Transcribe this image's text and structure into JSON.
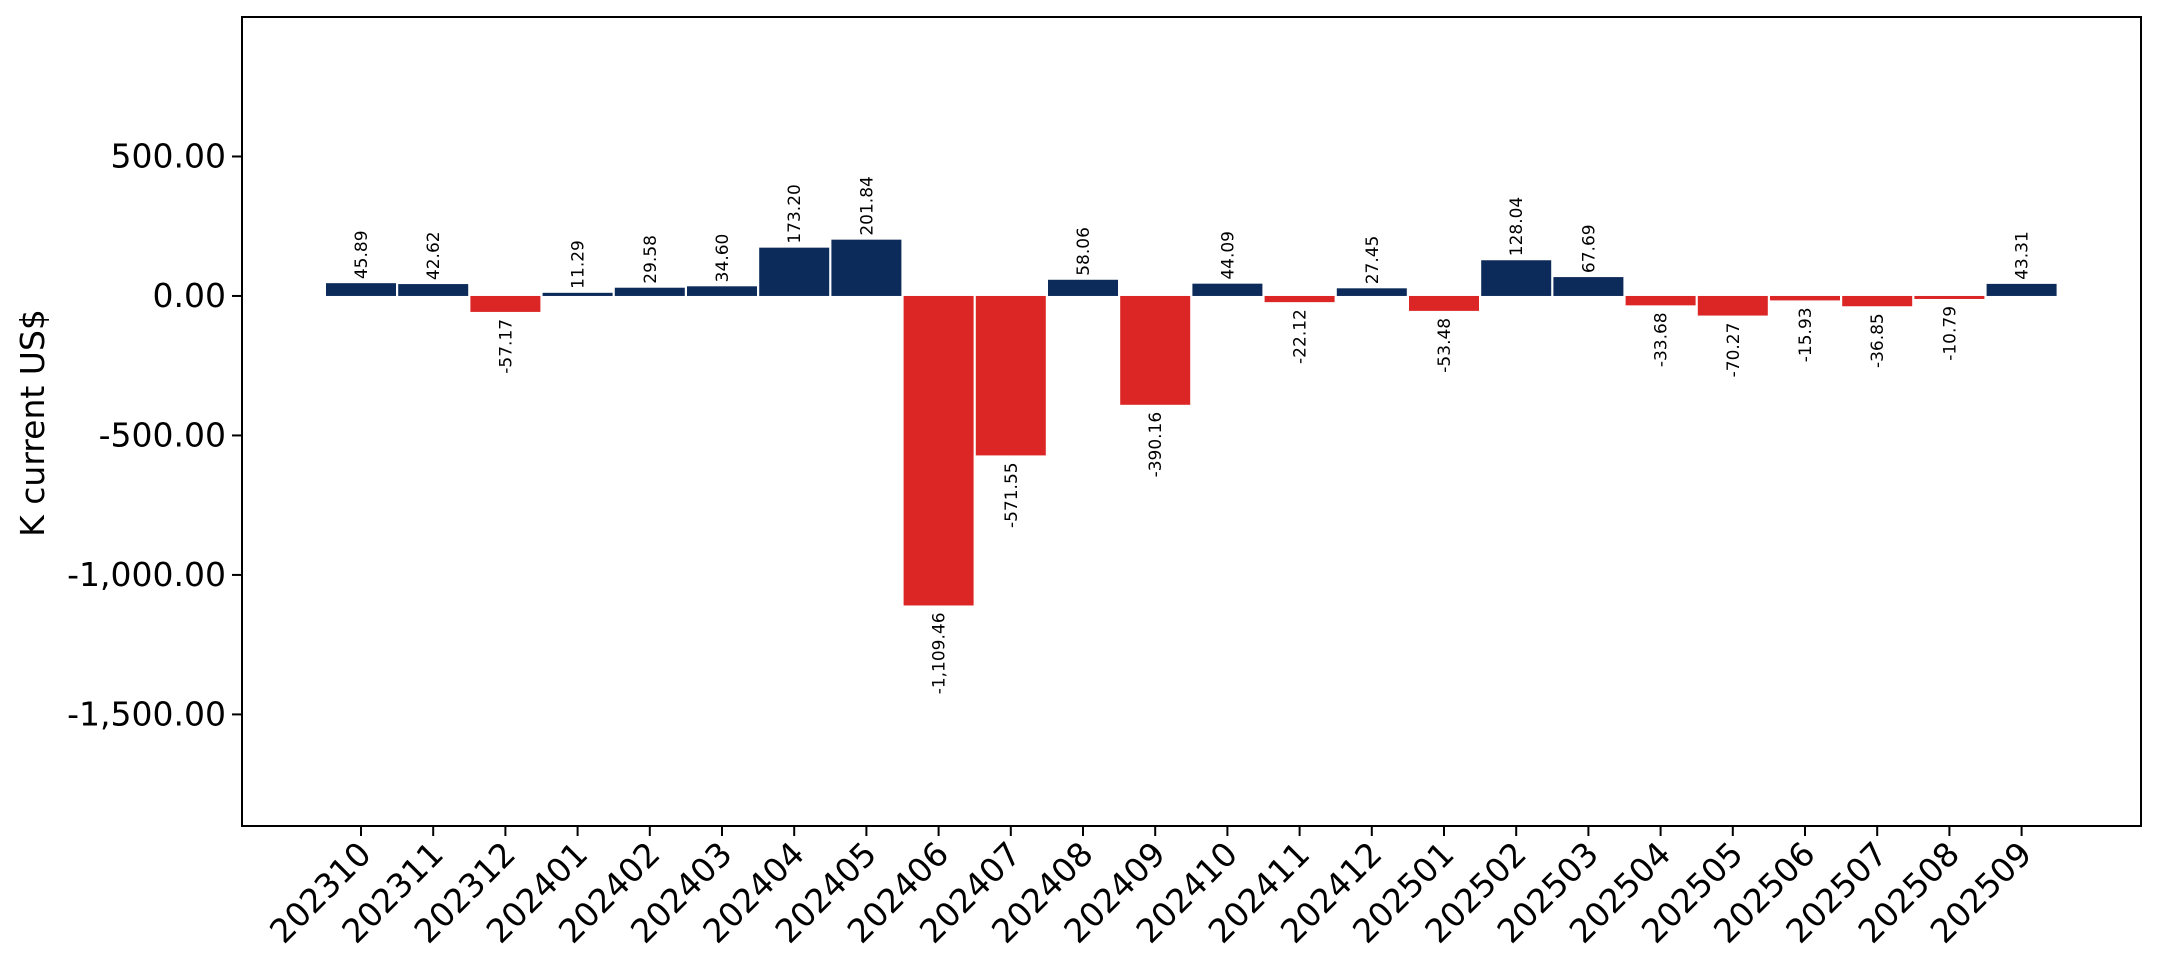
{
  "chart_data": {
    "type": "bar",
    "title": "",
    "xlabel": "",
    "ylabel": "K current US$",
    "categories": [
      "202310",
      "202311",
      "202312",
      "202401",
      "202402",
      "202403",
      "202404",
      "202405",
      "202406",
      "202407",
      "202408",
      "202409",
      "202410",
      "202411",
      "202412",
      "202501",
      "202502",
      "202503",
      "202504",
      "202505",
      "202506",
      "202507",
      "202508",
      "202509"
    ],
    "values": [
      45.89,
      42.62,
      -57.17,
      11.29,
      29.58,
      34.6,
      173.2,
      201.84,
      -1109.46,
      -571.55,
      58.06,
      -390.16,
      44.09,
      -22.12,
      27.45,
      -53.48,
      128.04,
      67.69,
      -33.68,
      -70.27,
      -15.93,
      -36.85,
      -10.79,
      43.31
    ],
    "value_labels": [
      "45.89",
      "42.62",
      "-57.17",
      "11.29",
      "29.58",
      "34.60",
      "173.20",
      "201.84",
      "-1,109.46",
      "-571.55",
      "58.06",
      "-390.16",
      "44.09",
      "-22.12",
      "27.45",
      "-53.48",
      "128.04",
      "67.69",
      "-33.68",
      "-70.27",
      "-15.93",
      "-36.85",
      "-10.79",
      "43.31"
    ],
    "ylim": [
      -1900,
      1000
    ],
    "yticks": [
      500,
      0,
      -500,
      -1000,
      -1500
    ],
    "ytick_labels": [
      "500.00",
      "0.00",
      "-500.00",
      "-1,000.00",
      "-1,500.00"
    ],
    "colors": {
      "positive": "#0d2b5a",
      "negative": "#dc2626"
    },
    "grid": false,
    "legend": "none"
  }
}
